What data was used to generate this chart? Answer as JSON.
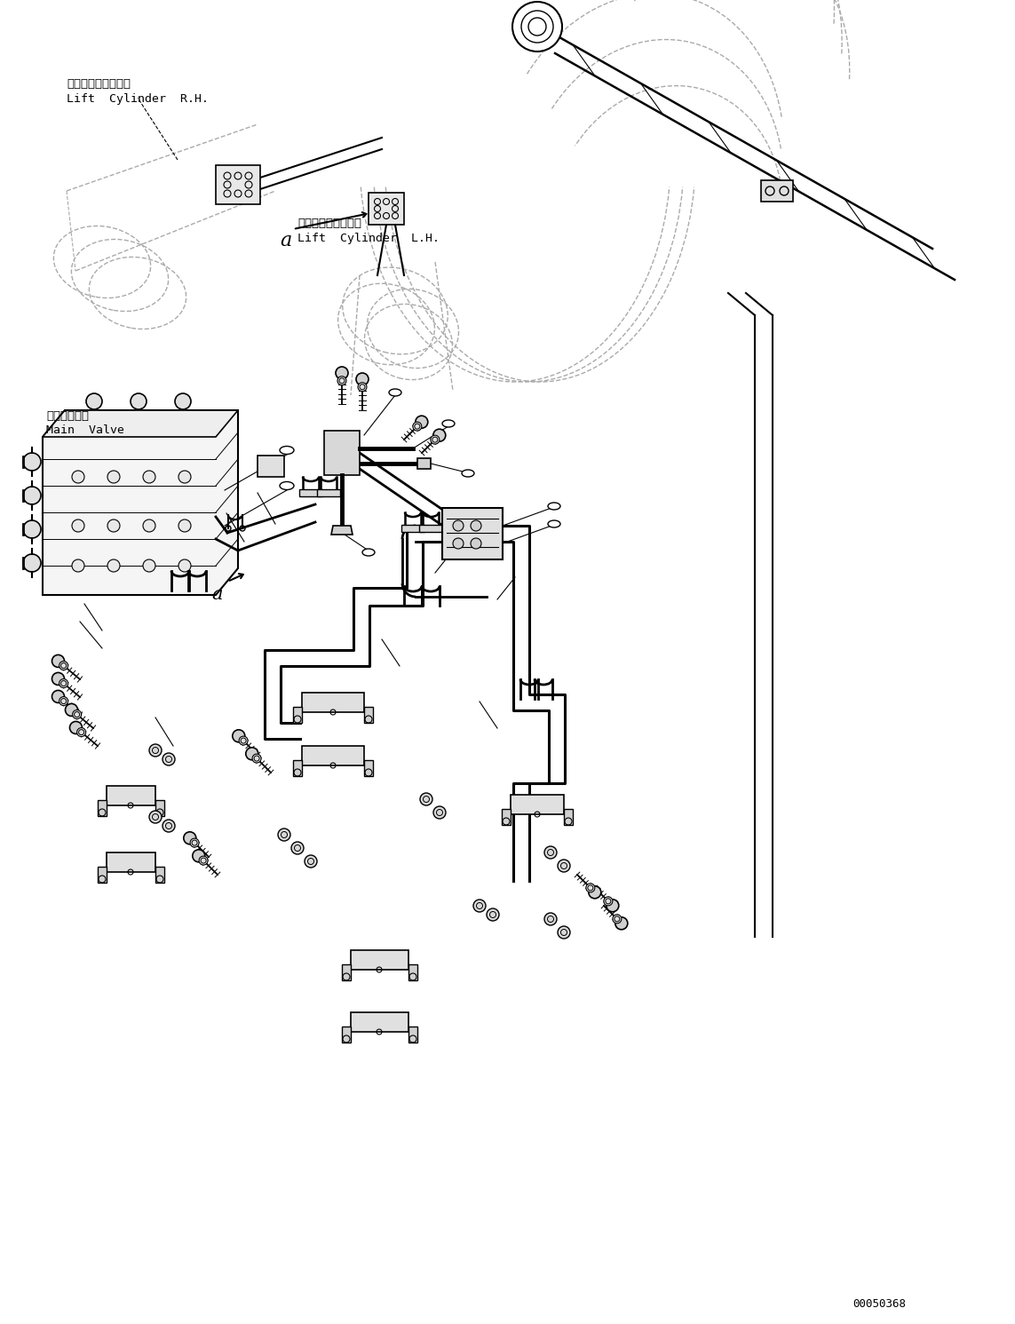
{
  "bg_color": "#ffffff",
  "line_color": "#000000",
  "dashed_color": "#aaaaaa",
  "text_color": "#000000",
  "fig_width": 11.43,
  "fig_height": 14.91,
  "dpi": 100,
  "part_number": "00050368",
  "labels": {
    "rh_cylinder_jp": "リフトシリンダ　右",
    "rh_cylinder_en": "Lift  Cylinder  R.H.",
    "lh_cylinder_jp": "リフトシリンダ　左",
    "lh_cylinder_en": "Lift  Cylinder  L.H.",
    "main_valve_jp": "メインバルブ",
    "main_valve_en": "Main  Valve",
    "label_a1": "a",
    "label_a2": "a"
  }
}
